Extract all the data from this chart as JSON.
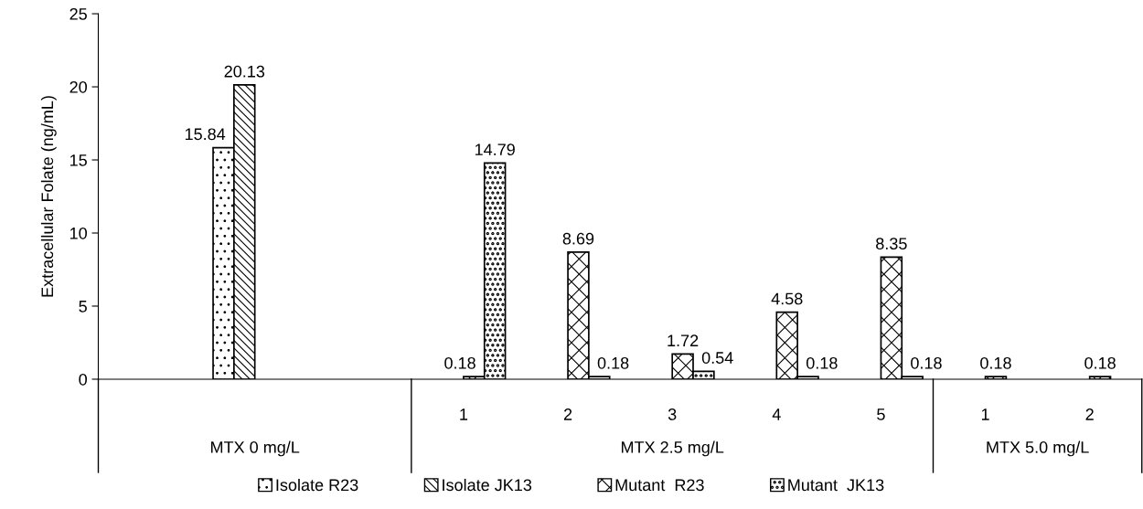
{
  "chart_data": {
    "type": "bar",
    "ylabel": "Extracellular Folate (ng/mL)",
    "categories": [
      null,
      null,
      null,
      "1",
      "2",
      "3",
      "4",
      "5",
      "1",
      "2"
    ],
    "series": [
      {
        "name": "Isolate R23",
        "color": "#000000",
        "values": [
          null,
          15.84,
          null,
          null,
          null,
          null,
          null,
          null,
          null,
          null
        ]
      },
      {
        "name": "Isolate JK13",
        "color": "#000000",
        "values": [
          null,
          20.13,
          null,
          null,
          null,
          null,
          null,
          null,
          null,
          null
        ]
      },
      {
        "name": "Mutant  R23",
        "color": "#000000",
        "values": [
          null,
          null,
          null,
          0.18,
          8.69,
          1.72,
          4.58,
          8.35,
          0.18,
          0.18
        ]
      },
      {
        "name": "Mutant  JK13",
        "color": "#000000",
        "values": [
          null,
          null,
          null,
          14.79,
          0.18,
          0.54,
          0.18,
          0.18,
          null,
          null
        ]
      }
    ],
    "annotations": [
      "MTX 0 mg/L",
      "MTX 2.5 mg/L",
      "MTX 5.0 mg/L"
    ],
    "ylim": [
      0,
      25
    ],
    "yticks": [
      0,
      5,
      10,
      15,
      20,
      25
    ],
    "data_labels": true,
    "grid": false,
    "legend": "bottom"
  }
}
